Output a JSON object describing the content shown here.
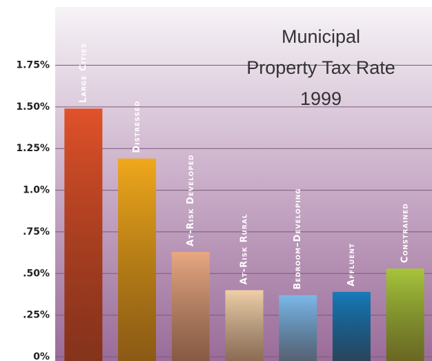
{
  "chart_data": {
    "type": "bar",
    "title": [
      "Municipal",
      "Property Tax Rate",
      "1999"
    ],
    "categories": [
      "Large Cities",
      "Distressed",
      "At-Risk Developed",
      "At-Risk Rural",
      "Bedroom–Developing",
      "Affluent",
      "Constrained"
    ],
    "values": [
      1.49,
      1.19,
      0.63,
      0.4,
      0.37,
      0.39,
      0.53
    ],
    "colors": [
      "#e0522a",
      "#f0a81c",
      "#e8a882",
      "#f0cfa8",
      "#7db8e8",
      "#1a7ab8",
      "#a8c43c"
    ],
    "ylim": [
      0,
      2.1
    ],
    "yticks": [
      {
        "value": 0,
        "label": "0%"
      },
      {
        "value": 0.25,
        "label": ".25%"
      },
      {
        "value": 0.5,
        "label": ".50%"
      },
      {
        "value": 0.75,
        "label": ".75%"
      },
      {
        "value": 1.0,
        "label": "1.0%"
      },
      {
        "value": 1.25,
        "label": "1.25%"
      },
      {
        "value": 1.5,
        "label": "1.50%"
      },
      {
        "value": 1.75,
        "label": "1.75%"
      }
    ],
    "grid": true
  }
}
